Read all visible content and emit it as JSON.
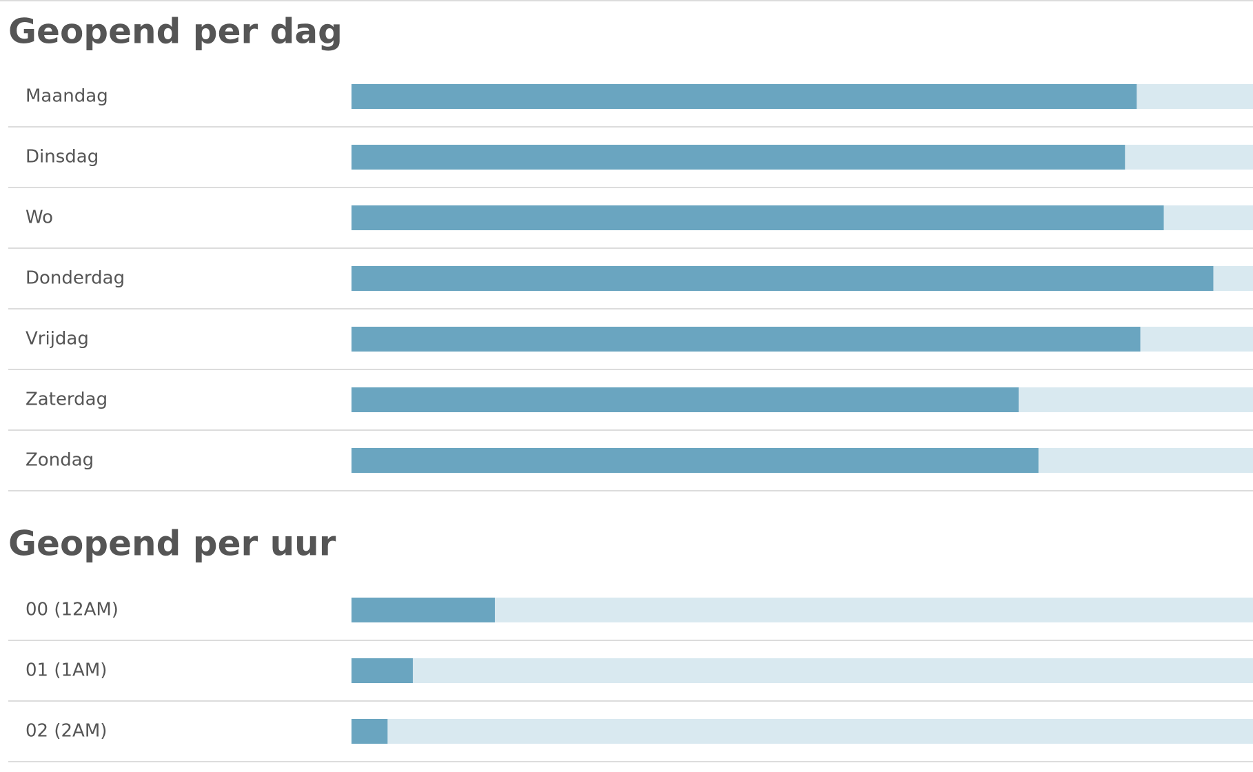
{
  "chart_data": [
    {
      "type": "bar",
      "orientation": "horizontal",
      "title": "Geopend per dag",
      "categories": [
        "Maandag",
        "Dinsdag",
        "Wo",
        "Donderdag",
        "Vrijdag",
        "Zaterdag",
        "Zondag"
      ],
      "values": [
        87.1,
        85.8,
        90.1,
        95.6,
        87.5,
        74.0,
        76.2
      ],
      "color": "#6aa5c0",
      "xlim": [
        0,
        100
      ]
    },
    {
      "type": "bar",
      "orientation": "horizontal",
      "title": "Geopend per uur",
      "categories": [
        "00 (12AM)",
        "01 (1AM)",
        "02 (2AM)"
      ],
      "values": [
        15.9,
        6.8,
        4.0
      ],
      "color": "#6aa5c0",
      "xlim": [
        0,
        100
      ]
    }
  ]
}
